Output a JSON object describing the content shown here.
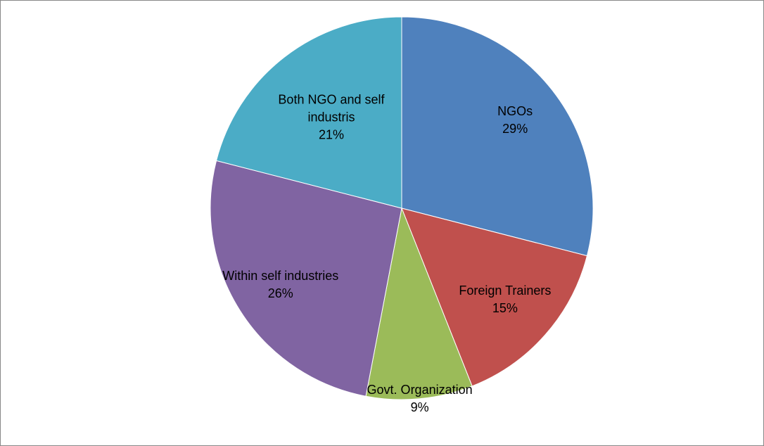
{
  "chart_data": {
    "type": "pie",
    "categories": [
      "NGOs",
      "Foreign Trainers",
      "Govt. Organization",
      "Within self industries",
      "Both NGO and self industris"
    ],
    "values": [
      29,
      15,
      9,
      26,
      21
    ],
    "value_labels": [
      "29%",
      "15%",
      "9%",
      "26%",
      "21%"
    ],
    "colors": [
      "#4f81bd",
      "#c0504d",
      "#9bbb59",
      "#8064a2",
      "#4bacc6"
    ]
  }
}
